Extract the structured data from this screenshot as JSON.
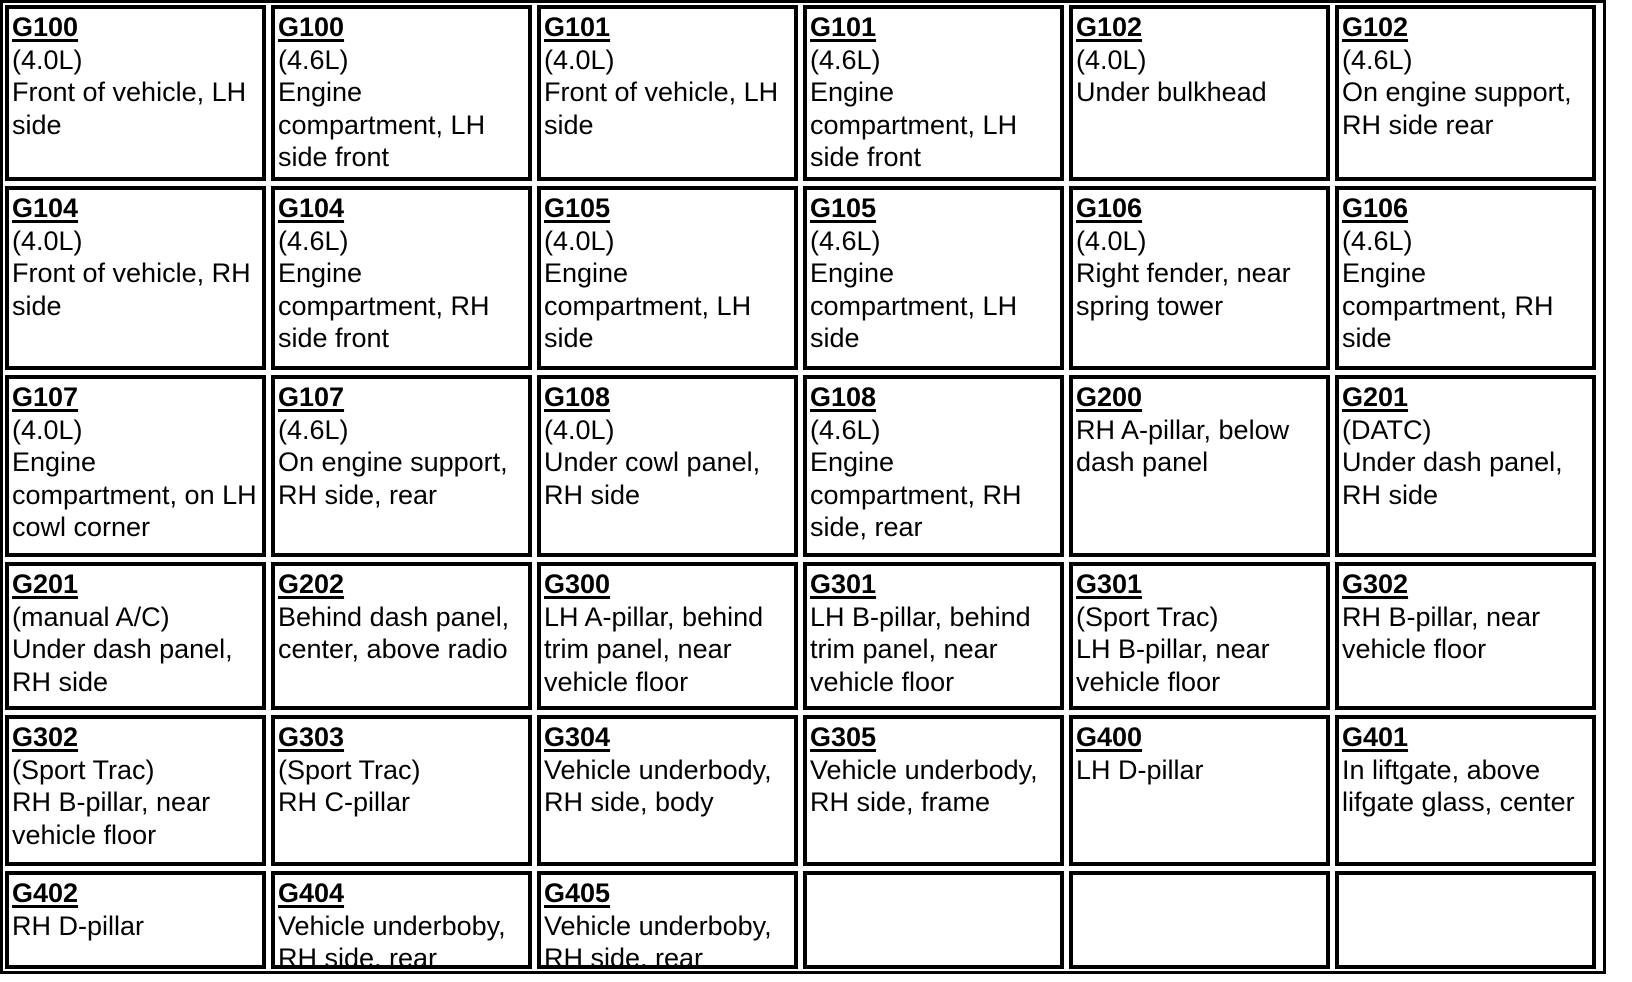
{
  "cells": [
    {
      "code": "G100",
      "lines": [
        "(4.0L)",
        "Front of vehicle, LH side"
      ]
    },
    {
      "code": "G100",
      "lines": [
        "(4.6L)",
        "Engine compartment, LH side front"
      ]
    },
    {
      "code": "G101",
      "lines": [
        "(4.0L)",
        "Front of vehicle, LH side"
      ]
    },
    {
      "code": "G101",
      "lines": [
        "(4.6L)",
        "Engine compartment, LH side front"
      ]
    },
    {
      "code": "G102",
      "lines": [
        "(4.0L)",
        "Under bulkhead"
      ]
    },
    {
      "code": "G102",
      "lines": [
        "(4.6L)",
        "On engine support, RH side rear"
      ]
    },
    {
      "code": "G104",
      "lines": [
        "(4.0L)",
        "Front of vehicle, RH side"
      ]
    },
    {
      "code": "G104",
      "lines": [
        "(4.6L)",
        "Engine compartment, RH side front"
      ]
    },
    {
      "code": "G105",
      "lines": [
        "(4.0L)",
        "Engine compartment, LH side"
      ]
    },
    {
      "code": "G105",
      "lines": [
        "(4.6L)",
        "Engine compartment, LH side"
      ]
    },
    {
      "code": "G106",
      "lines": [
        "(4.0L)",
        "Right fender, near spring tower"
      ]
    },
    {
      "code": "G106",
      "lines": [
        "(4.6L)",
        "Engine compartment, RH side"
      ]
    },
    {
      "code": "G107",
      "lines": [
        "(4.0L)",
        "Engine compartment, on LH cowl corner"
      ]
    },
    {
      "code": "G107",
      "lines": [
        "(4.6L)",
        "On engine support, RH side, rear"
      ]
    },
    {
      "code": "G108",
      "lines": [
        "(4.0L)",
        "Under cowl panel, RH side"
      ]
    },
    {
      "code": "G108",
      "lines": [
        "(4.6L)",
        "Engine compartment, RH side, rear"
      ]
    },
    {
      "code": "G200",
      "lines": [
        "RH A-pillar, below dash panel"
      ]
    },
    {
      "code": "G201",
      "lines": [
        "(DATC)",
        "Under dash panel, RH side"
      ]
    },
    {
      "code": "G201",
      "lines": [
        "(manual A/C)",
        "Under dash panel, RH side"
      ]
    },
    {
      "code": "G202",
      "lines": [
        "Behind dash panel, center, above radio"
      ]
    },
    {
      "code": "G300",
      "lines": [
        "LH A-pillar, behind trim panel, near vehicle floor"
      ]
    },
    {
      "code": "G301",
      "lines": [
        "LH B-pillar, behind trim panel, near vehicle floor"
      ]
    },
    {
      "code": "G301",
      "lines": [
        "(Sport Trac)",
        "LH B-pillar, near vehicle floor"
      ]
    },
    {
      "code": "G302",
      "lines": [
        "RH B-pillar, near vehicle floor"
      ]
    },
    {
      "code": "G302",
      "lines": [
        "(Sport Trac)",
        "RH B-pillar, near vehicle floor"
      ]
    },
    {
      "code": "G303",
      "lines": [
        "(Sport Trac)",
        "RH C-pillar"
      ]
    },
    {
      "code": "G304",
      "lines": [
        "Vehicle underbody, RH side, body"
      ]
    },
    {
      "code": "G305",
      "lines": [
        "Vehicle underbody, RH side, frame"
      ]
    },
    {
      "code": "G400",
      "lines": [
        "LH D-pillar"
      ]
    },
    {
      "code": "G401",
      "lines": [
        "In liftgate, above lifgate glass, center"
      ]
    },
    {
      "code": "G402",
      "lines": [
        "RH D-pillar"
      ]
    },
    {
      "code": "G404",
      "lines": [
        "Vehicle underboby, RH side, rear"
      ]
    },
    {
      "code": "G405",
      "lines": [
        "Vehicle underboby, RH side, rear"
      ]
    },
    {
      "code": "",
      "lines": []
    },
    {
      "code": "",
      "lines": []
    },
    {
      "code": "",
      "lines": []
    }
  ]
}
